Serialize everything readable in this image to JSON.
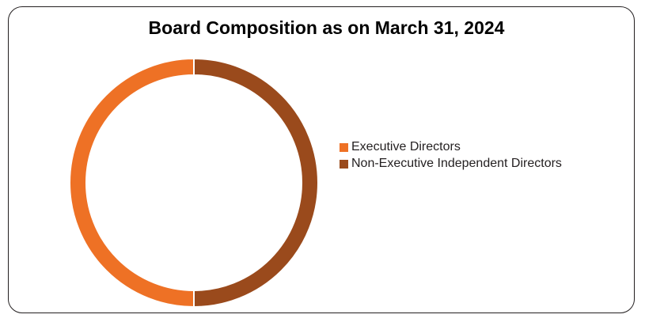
{
  "chart_data": {
    "type": "pie",
    "style": "donut",
    "title": "Board Composition as on March 31, 2024",
    "categories": [
      "Executive Directors",
      "Non-Executive Independent Directors"
    ],
    "values": [
      50,
      50
    ],
    "colors": [
      "#ee7125",
      "#9a4a1c"
    ],
    "legend_position": "right"
  }
}
